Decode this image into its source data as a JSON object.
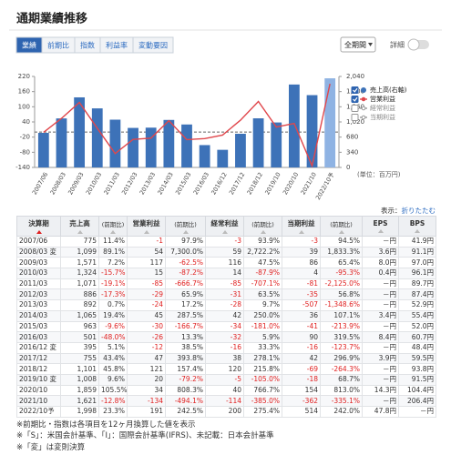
{
  "header": {
    "title": "通期業績推移"
  },
  "tabs": [
    {
      "label": "業績",
      "active": true
    },
    {
      "label": "前期比",
      "active": false
    },
    {
      "label": "指数",
      "active": false
    },
    {
      "label": "利益率",
      "active": false
    },
    {
      "label": "変動要因",
      "active": false
    }
  ],
  "controls": {
    "period": "全期間",
    "detail": "詳細",
    "detail_on": false
  },
  "chart_data": {
    "type": "combo",
    "categories": [
      "2007/06",
      "2008/03",
      "2009/03",
      "2010/03",
      "2011/03",
      "2012/03",
      "2013/03",
      "2014/03",
      "2015/03",
      "2016/03",
      "2016/12",
      "2017/12",
      "2018/12",
      "2019/10",
      "2020/10",
      "2021/10",
      "2022/10予"
    ],
    "series": [
      {
        "name": "売上高(右軸)",
        "type": "bar",
        "axis": "y2",
        "color": "#3d72b8",
        "visible": true,
        "colors": [
          "#3d72b8",
          "#3d72b8",
          "#3d72b8",
          "#3d72b8",
          "#3d72b8",
          "#3d72b8",
          "#3d72b8",
          "#3d72b8",
          "#3d72b8",
          "#3d72b8",
          "#3d72b8",
          "#3d72b8",
          "#3d72b8",
          "#3d72b8",
          "#3d72b8",
          "#3d72b8",
          "#8fb3e3"
        ],
        "values": [
          775,
          1099,
          1571,
          1324,
          1071,
          886,
          892,
          1065,
          963,
          501,
          395,
          755,
          1101,
          1008,
          1859,
          1621,
          1998
        ]
      },
      {
        "name": "営業利益",
        "type": "line",
        "color": "#e0474c",
        "visible": true,
        "values": [
          -1,
          54,
          117,
          15,
          -85,
          -29,
          -24,
          45,
          -30,
          -26,
          -12,
          47,
          121,
          20,
          34,
          -134,
          191
        ]
      },
      {
        "name": "経常利益",
        "type": "line",
        "color": "#999999",
        "visible": false
      },
      {
        "name": "当期利益",
        "type": "line",
        "color": "#999999",
        "visible": false
      }
    ],
    "ylim": [
      -140,
      220
    ],
    "yticks": [
      -140,
      -80,
      -20,
      40,
      100,
      160,
      220
    ],
    "y2lim": [
      0,
      2040
    ],
    "y2ticks": [
      0,
      340,
      680,
      {
        "value": 1020,
        "label": "1,020"
      },
      {
        "value": 1360,
        "label": "1,360"
      },
      {
        "value": 1700,
        "label": "1,700"
      },
      {
        "value": 2040,
        "label": "2,040"
      }
    ],
    "zero_line": true,
    "unit": "(単位：百万円)"
  },
  "table": {
    "toggle_prefix": "表示：",
    "toggle_link": "折りたたむ",
    "headers": [
      "決算期",
      "売上高",
      "(前期比)",
      "営業利益",
      "(前期比)",
      "経常利益",
      "(前期比)",
      "当期利益",
      "(前期比)",
      "EPS",
      "BPS"
    ],
    "rows": [
      [
        "2007/06",
        "775",
        "11.4%",
        "-1",
        "97.9%",
        "-3",
        "93.9%",
        "-3",
        "94.5%",
        "－円",
        "41.9円"
      ],
      [
        "2008/03 変",
        "1,099",
        "89.1%",
        "54",
        "7,300.0%",
        "59",
        "2,722.2%",
        "39",
        "1,833.3%",
        "3.6円",
        "91.1円"
      ],
      [
        "2009/03",
        "1,571",
        "7.2%",
        "117",
        "-62.5%",
        "116",
        "47.5%",
        "86",
        "65.4%",
        "8.0円",
        "97.0円"
      ],
      [
        "2010/03",
        "1,324",
        "-15.7%",
        "15",
        "-87.2%",
        "14",
        "-87.9%",
        "4",
        "-95.3%",
        "0.4円",
        "96.1円"
      ],
      [
        "2011/03",
        "1,071",
        "-19.1%",
        "-85",
        "-666.7%",
        "-85",
        "-707.1%",
        "-81",
        "-2,125.0%",
        "－円",
        "89.7円"
      ],
      [
        "2012/03",
        "886",
        "-17.3%",
        "-29",
        "65.9%",
        "-31",
        "63.5%",
        "-35",
        "56.8%",
        "－円",
        "87.4円"
      ],
      [
        "2013/03",
        "892",
        "0.7%",
        "-24",
        "17.2%",
        "-28",
        "9.7%",
        "-507",
        "-1,348.6%",
        "－円",
        "52.9円"
      ],
      [
        "2014/03",
        "1,065",
        "19.4%",
        "45",
        "287.5%",
        "42",
        "250.0%",
        "36",
        "107.1%",
        "3.4円",
        "55.4円"
      ],
      [
        "2015/03",
        "963",
        "-9.6%",
        "-30",
        "-166.7%",
        "-34",
        "-181.0%",
        "-41",
        "-213.9%",
        "－円",
        "52.0円"
      ],
      [
        "2016/03",
        "501",
        "-48.0%",
        "-26",
        "13.3%",
        "-32",
        "5.9%",
        "90",
        "319.5%",
        "8.4円",
        "60.7円"
      ],
      [
        "2016/12 変",
        "395",
        "5.1%",
        "-12",
        "38.5%",
        "-16",
        "33.3%",
        "-16",
        "-123.7%",
        "－円",
        "48.4円"
      ],
      [
        "2017/12",
        "755",
        "43.4%",
        "47",
        "393.8%",
        "38",
        "278.1%",
        "42",
        "296.9%",
        "3.9円",
        "59.5円"
      ],
      [
        "2018/12",
        "1,101",
        "45.8%",
        "121",
        "157.4%",
        "120",
        "215.8%",
        "-69",
        "-264.3%",
        "－円",
        "93.8円"
      ],
      [
        "2019/10 変",
        "1,008",
        "9.6%",
        "20",
        "-79.2%",
        "-5",
        "-105.0%",
        "-18",
        "68.7%",
        "－円",
        "91.5円"
      ],
      [
        "2020/10",
        "1,859",
        "105.5%",
        "34",
        "808.3%",
        "40",
        "766.7%",
        "154",
        "813.0%",
        "14.3円",
        "104.4円"
      ],
      [
        "2021/10",
        "1,621",
        "-12.8%",
        "-134",
        "-494.1%",
        "-114",
        "-385.0%",
        "-362",
        "-335.1%",
        "－円",
        "206.4円"
      ],
      [
        "2022/10予",
        "1,998",
        "23.3%",
        "191",
        "242.5%",
        "200",
        "275.4%",
        "514",
        "242.0%",
        "47.8円",
        "－円"
      ]
    ]
  },
  "footnotes": [
    "※前期比・指数は各項目を12ヶ月換算した値を表示",
    "※「S」：米国会計基準、「I」：国際会計基準(IFRS)、未記載：日本会計基準",
    "※「変」は変則決算"
  ]
}
